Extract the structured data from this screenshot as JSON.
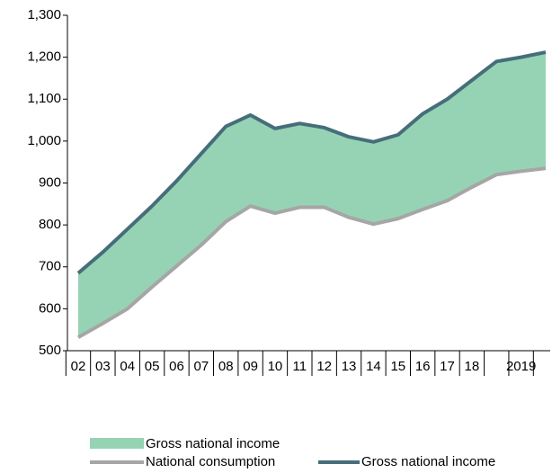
{
  "chart_data": {
    "type": "area-lines",
    "categories": [
      "02",
      "03",
      "04",
      "05",
      "06",
      "07",
      "08",
      "09",
      "10",
      "11",
      "12",
      "13",
      "14",
      "15",
      "16",
      "17",
      "18",
      null,
      "2019",
      null
    ],
    "area": {
      "name": "Gross national income",
      "color": "#95d3b4"
    },
    "series": [
      {
        "name": "National consumption",
        "color": "#a6a6a6",
        "values": [
          532,
          565,
          600,
          652,
          702,
          752,
          808,
          845,
          828,
          842,
          842,
          818,
          802,
          815,
          837,
          858,
          890,
          920,
          928,
          935
        ]
      },
      {
        "name": "Gross national income",
        "color": "#466e7a",
        "values": [
          685,
          735,
          790,
          845,
          905,
          970,
          1035,
          1062,
          1030,
          1042,
          1032,
          1010,
          998,
          1015,
          1065,
          1100,
          1145,
          1190,
          1200,
          1212
        ]
      }
    ],
    "ylim": [
      500,
      1300
    ],
    "yticks": [
      500,
      600,
      700,
      800,
      900,
      {
        "value": 1000,
        "label": "1,000"
      },
      {
        "value": 1100,
        "label": "1,100"
      },
      {
        "value": 1200,
        "label": "1,200"
      },
      {
        "value": 1300,
        "label": "1,300"
      }
    ],
    "legend": "bottom"
  }
}
